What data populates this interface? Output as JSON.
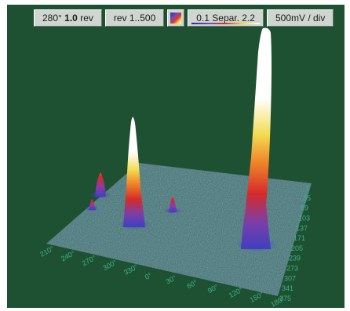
{
  "toolbar": {
    "angle_text": "280°",
    "rev_count": "1.0",
    "rev_unit": "rev",
    "rev_range": "rev 1..500",
    "palette_icon": "color-palette-icon",
    "separation": "0.1 Separ. 2.2",
    "scale": "500mV / div"
  },
  "plot": {
    "background": "#1e5131",
    "surface_color": "#3d6a73",
    "axis_label_color": "#3bb38a",
    "phase_ticks": [
      "210°",
      "240°",
      "270°",
      "300°",
      "330°",
      "0°",
      "30°",
      "60°",
      "90°",
      "120°",
      "150°",
      "180°"
    ],
    "rev_ticks": [
      "1",
      "35",
      "69",
      "103",
      "137",
      "171",
      "205",
      "239",
      "273",
      "307",
      "341",
      "375"
    ],
    "peaks": [
      {
        "phase_deg": 320,
        "rev": 200,
        "height": "tall"
      },
      {
        "phase_deg": 140,
        "rev": 320,
        "height": "very-tall"
      },
      {
        "phase_deg": 245,
        "rev": 190,
        "height": "small"
      },
      {
        "phase_deg": 40,
        "rev": 270,
        "height": "small"
      },
      {
        "phase_deg": 230,
        "rev": 290,
        "height": "tiny"
      }
    ]
  }
}
